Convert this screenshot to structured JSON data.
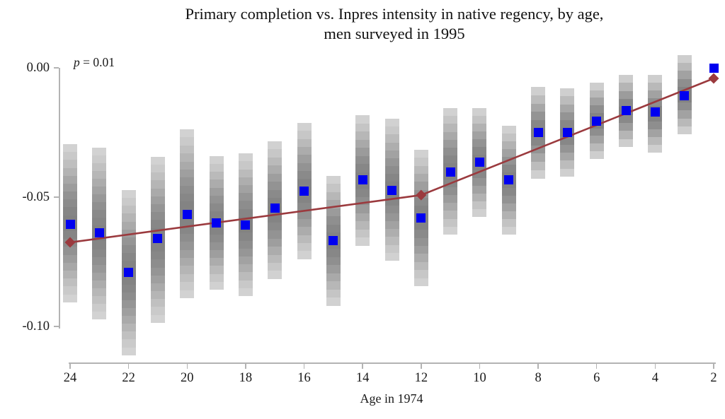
{
  "chart_data": {
    "type": "scatter",
    "title_line1": "Primary completion vs. Inpres intensity in native regency, by age,",
    "title_line2": "men surveyed in 1995",
    "annotation_var": "p",
    "annotation_rest": " = 0.01",
    "xlabel": "Age in 1974",
    "x_ticks": [
      24,
      22,
      20,
      18,
      16,
      14,
      12,
      10,
      8,
      6,
      4,
      2
    ],
    "y_ticks": [
      {
        "label": "0.00",
        "value": 0.0
      },
      {
        "label": "-0.05",
        "value": -0.05
      },
      {
        "label": "-0.10",
        "value": -0.1
      }
    ],
    "ylim": [
      -0.114,
      0.007
    ],
    "legend": "none",
    "grid": "off",
    "points": [
      {
        "age": 24,
        "estimate": -0.0604,
        "ci_upper": -0.0295,
        "ci_lower": -0.0907
      },
      {
        "age": 23,
        "estimate": -0.0637,
        "ci_upper": -0.0309,
        "ci_lower": -0.0973
      },
      {
        "age": 22,
        "estimate": -0.0792,
        "ci_upper": -0.0473,
        "ci_lower": -0.1112
      },
      {
        "age": 21,
        "estimate": -0.0661,
        "ci_upper": -0.0344,
        "ci_lower": -0.0986
      },
      {
        "age": 20,
        "estimate": -0.0568,
        "ci_upper": -0.0238,
        "ci_lower": -0.0891
      },
      {
        "age": 19,
        "estimate": -0.0601,
        "ci_upper": -0.0342,
        "ci_lower": -0.0858
      },
      {
        "age": 18,
        "estimate": -0.0609,
        "ci_upper": -0.0331,
        "ci_lower": -0.0883
      },
      {
        "age": 17,
        "estimate": -0.0541,
        "ci_upper": -0.0284,
        "ci_lower": -0.0817
      },
      {
        "age": 16,
        "estimate": -0.0478,
        "ci_upper": -0.0213,
        "ci_lower": -0.074
      },
      {
        "age": 15,
        "estimate": -0.0669,
        "ci_upper": -0.0418,
        "ci_lower": -0.0921
      },
      {
        "age": 14,
        "estimate": -0.0434,
        "ci_upper": -0.0183,
        "ci_lower": -0.0689
      },
      {
        "age": 13,
        "estimate": -0.0475,
        "ci_upper": -0.0197,
        "ci_lower": -0.0746
      },
      {
        "age": 12,
        "estimate": -0.058,
        "ci_upper": -0.0317,
        "ci_lower": -0.0844
      },
      {
        "age": 11,
        "estimate": -0.0402,
        "ci_upper": -0.0156,
        "ci_lower": -0.0645
      },
      {
        "age": 10,
        "estimate": -0.0366,
        "ci_upper": -0.0156,
        "ci_lower": -0.0576
      },
      {
        "age": 9,
        "estimate": -0.0432,
        "ci_upper": -0.0224,
        "ci_lower": -0.0645
      },
      {
        "age": 8,
        "estimate": -0.0251,
        "ci_upper": -0.0074,
        "ci_lower": -0.0429
      },
      {
        "age": 7,
        "estimate": -0.0249,
        "ci_upper": -0.0079,
        "ci_lower": -0.0421
      },
      {
        "age": 6,
        "estimate": -0.0205,
        "ci_upper": -0.0057,
        "ci_lower": -0.0352
      },
      {
        "age": 5,
        "estimate": -0.0164,
        "ci_upper": -0.0027,
        "ci_lower": -0.0306
      },
      {
        "age": 4,
        "estimate": -0.0172,
        "ci_upper": -0.0027,
        "ci_lower": -0.0328
      },
      {
        "age": 3,
        "estimate": -0.0107,
        "ci_upper": 0.0049,
        "ci_lower": -0.0257
      },
      {
        "age": 2,
        "estimate": 0.0,
        "ci_upper": null,
        "ci_lower": null
      }
    ],
    "trend_line": [
      {
        "age": 24,
        "value": -0.0675
      },
      {
        "age": 12,
        "value": -0.0492
      },
      {
        "age": 2,
        "value": -0.0041
      }
    ],
    "colors": {
      "point": "#0000f0",
      "trend": "#9b3a3e",
      "bar_dark": "#828282",
      "bar_light": "#d4d4d4",
      "axis": "#b3b3b3",
      "text": "#1a1a1a"
    }
  }
}
